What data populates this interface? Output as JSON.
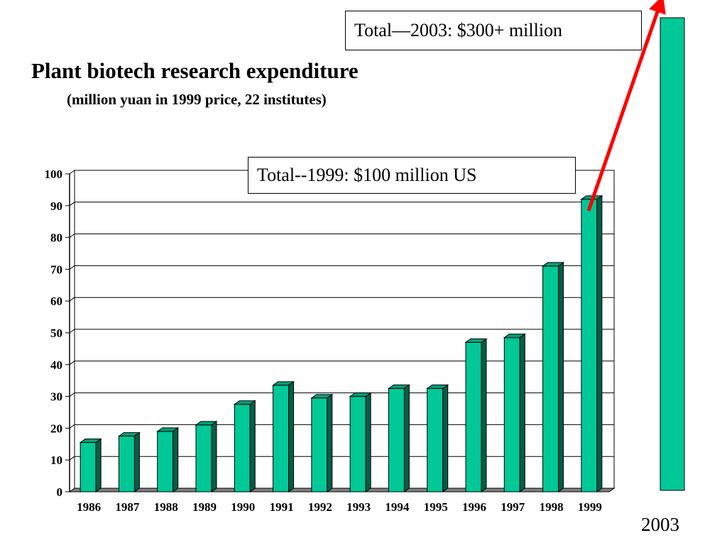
{
  "title": "Plant biotech research expenditure",
  "subtitle": "(million yuan in 1999 price, 22 institutes)",
  "annotations": {
    "total_2003": "Total—2003: $300+ million",
    "total_1999": "Total--1999:  $100 million US"
  },
  "colors": {
    "bar_front": "#00c896",
    "bar_top": "#00a07a",
    "bar_side": "#005f48",
    "floor": "#808080",
    "arrow": "#ff0000"
  },
  "chart_data": {
    "type": "bar",
    "title": "Plant biotech research expenditure",
    "subtitle": "(million yuan in 1999 price, 22 institutes)",
    "categories": [
      "1986",
      "1987",
      "1988",
      "1989",
      "1990",
      "1991",
      "1992",
      "1993",
      "1994",
      "1995",
      "1996",
      "1997",
      "1998",
      "1999"
    ],
    "values": [
      15.5,
      17.5,
      19,
      21,
      27.5,
      33.5,
      29.5,
      30,
      32.5,
      32.5,
      47,
      48.5,
      71,
      92
    ],
    "ylim": [
      0,
      100
    ],
    "yticks": [
      "0",
      "10",
      "20",
      "30",
      "40",
      "50",
      "60",
      "70",
      "80",
      "90",
      "100"
    ],
    "grid": true,
    "extra_bar": {
      "label": "2003"
    }
  }
}
